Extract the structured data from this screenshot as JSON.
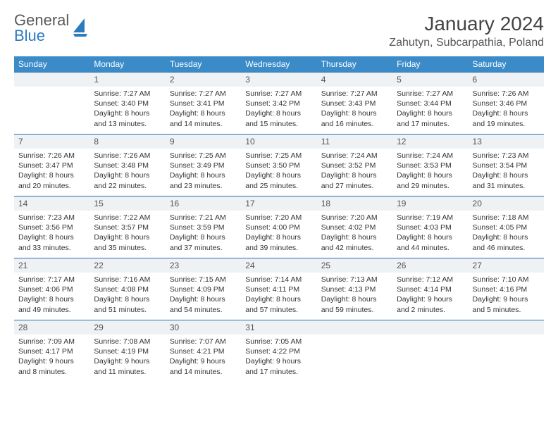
{
  "brand": {
    "line1": "General",
    "line2": "Blue"
  },
  "title": "January 2024",
  "location": "Zahutyn, Subcarpathia, Poland",
  "colors": {
    "header_bg": "#3b8bc9",
    "header_text": "#ffffff",
    "daynum_bg": "#eef2f5",
    "daynum_border": "#2b6fa8",
    "text": "#333333",
    "brand_gray": "#5a5a5a",
    "brand_blue": "#2b7bbf"
  },
  "day_names": [
    "Sunday",
    "Monday",
    "Tuesday",
    "Wednesday",
    "Thursday",
    "Friday",
    "Saturday"
  ],
  "weeks": [
    [
      {
        "n": "",
        "sr": "",
        "ss": "",
        "dl": ""
      },
      {
        "n": "1",
        "sr": "Sunrise: 7:27 AM",
        "ss": "Sunset: 3:40 PM",
        "dl": "Daylight: 8 hours and 13 minutes."
      },
      {
        "n": "2",
        "sr": "Sunrise: 7:27 AM",
        "ss": "Sunset: 3:41 PM",
        "dl": "Daylight: 8 hours and 14 minutes."
      },
      {
        "n": "3",
        "sr": "Sunrise: 7:27 AM",
        "ss": "Sunset: 3:42 PM",
        "dl": "Daylight: 8 hours and 15 minutes."
      },
      {
        "n": "4",
        "sr": "Sunrise: 7:27 AM",
        "ss": "Sunset: 3:43 PM",
        "dl": "Daylight: 8 hours and 16 minutes."
      },
      {
        "n": "5",
        "sr": "Sunrise: 7:27 AM",
        "ss": "Sunset: 3:44 PM",
        "dl": "Daylight: 8 hours and 17 minutes."
      },
      {
        "n": "6",
        "sr": "Sunrise: 7:26 AM",
        "ss": "Sunset: 3:46 PM",
        "dl": "Daylight: 8 hours and 19 minutes."
      }
    ],
    [
      {
        "n": "7",
        "sr": "Sunrise: 7:26 AM",
        "ss": "Sunset: 3:47 PM",
        "dl": "Daylight: 8 hours and 20 minutes."
      },
      {
        "n": "8",
        "sr": "Sunrise: 7:26 AM",
        "ss": "Sunset: 3:48 PM",
        "dl": "Daylight: 8 hours and 22 minutes."
      },
      {
        "n": "9",
        "sr": "Sunrise: 7:25 AM",
        "ss": "Sunset: 3:49 PM",
        "dl": "Daylight: 8 hours and 23 minutes."
      },
      {
        "n": "10",
        "sr": "Sunrise: 7:25 AM",
        "ss": "Sunset: 3:50 PM",
        "dl": "Daylight: 8 hours and 25 minutes."
      },
      {
        "n": "11",
        "sr": "Sunrise: 7:24 AM",
        "ss": "Sunset: 3:52 PM",
        "dl": "Daylight: 8 hours and 27 minutes."
      },
      {
        "n": "12",
        "sr": "Sunrise: 7:24 AM",
        "ss": "Sunset: 3:53 PM",
        "dl": "Daylight: 8 hours and 29 minutes."
      },
      {
        "n": "13",
        "sr": "Sunrise: 7:23 AM",
        "ss": "Sunset: 3:54 PM",
        "dl": "Daylight: 8 hours and 31 minutes."
      }
    ],
    [
      {
        "n": "14",
        "sr": "Sunrise: 7:23 AM",
        "ss": "Sunset: 3:56 PM",
        "dl": "Daylight: 8 hours and 33 minutes."
      },
      {
        "n": "15",
        "sr": "Sunrise: 7:22 AM",
        "ss": "Sunset: 3:57 PM",
        "dl": "Daylight: 8 hours and 35 minutes."
      },
      {
        "n": "16",
        "sr": "Sunrise: 7:21 AM",
        "ss": "Sunset: 3:59 PM",
        "dl": "Daylight: 8 hours and 37 minutes."
      },
      {
        "n": "17",
        "sr": "Sunrise: 7:20 AM",
        "ss": "Sunset: 4:00 PM",
        "dl": "Daylight: 8 hours and 39 minutes."
      },
      {
        "n": "18",
        "sr": "Sunrise: 7:20 AM",
        "ss": "Sunset: 4:02 PM",
        "dl": "Daylight: 8 hours and 42 minutes."
      },
      {
        "n": "19",
        "sr": "Sunrise: 7:19 AM",
        "ss": "Sunset: 4:03 PM",
        "dl": "Daylight: 8 hours and 44 minutes."
      },
      {
        "n": "20",
        "sr": "Sunrise: 7:18 AM",
        "ss": "Sunset: 4:05 PM",
        "dl": "Daylight: 8 hours and 46 minutes."
      }
    ],
    [
      {
        "n": "21",
        "sr": "Sunrise: 7:17 AM",
        "ss": "Sunset: 4:06 PM",
        "dl": "Daylight: 8 hours and 49 minutes."
      },
      {
        "n": "22",
        "sr": "Sunrise: 7:16 AM",
        "ss": "Sunset: 4:08 PM",
        "dl": "Daylight: 8 hours and 51 minutes."
      },
      {
        "n": "23",
        "sr": "Sunrise: 7:15 AM",
        "ss": "Sunset: 4:09 PM",
        "dl": "Daylight: 8 hours and 54 minutes."
      },
      {
        "n": "24",
        "sr": "Sunrise: 7:14 AM",
        "ss": "Sunset: 4:11 PM",
        "dl": "Daylight: 8 hours and 57 minutes."
      },
      {
        "n": "25",
        "sr": "Sunrise: 7:13 AM",
        "ss": "Sunset: 4:13 PM",
        "dl": "Daylight: 8 hours and 59 minutes."
      },
      {
        "n": "26",
        "sr": "Sunrise: 7:12 AM",
        "ss": "Sunset: 4:14 PM",
        "dl": "Daylight: 9 hours and 2 minutes."
      },
      {
        "n": "27",
        "sr": "Sunrise: 7:10 AM",
        "ss": "Sunset: 4:16 PM",
        "dl": "Daylight: 9 hours and 5 minutes."
      }
    ],
    [
      {
        "n": "28",
        "sr": "Sunrise: 7:09 AM",
        "ss": "Sunset: 4:17 PM",
        "dl": "Daylight: 9 hours and 8 minutes."
      },
      {
        "n": "29",
        "sr": "Sunrise: 7:08 AM",
        "ss": "Sunset: 4:19 PM",
        "dl": "Daylight: 9 hours and 11 minutes."
      },
      {
        "n": "30",
        "sr": "Sunrise: 7:07 AM",
        "ss": "Sunset: 4:21 PM",
        "dl": "Daylight: 9 hours and 14 minutes."
      },
      {
        "n": "31",
        "sr": "Sunrise: 7:05 AM",
        "ss": "Sunset: 4:22 PM",
        "dl": "Daylight: 9 hours and 17 minutes."
      },
      {
        "n": "",
        "sr": "",
        "ss": "",
        "dl": ""
      },
      {
        "n": "",
        "sr": "",
        "ss": "",
        "dl": ""
      },
      {
        "n": "",
        "sr": "",
        "ss": "",
        "dl": ""
      }
    ]
  ]
}
